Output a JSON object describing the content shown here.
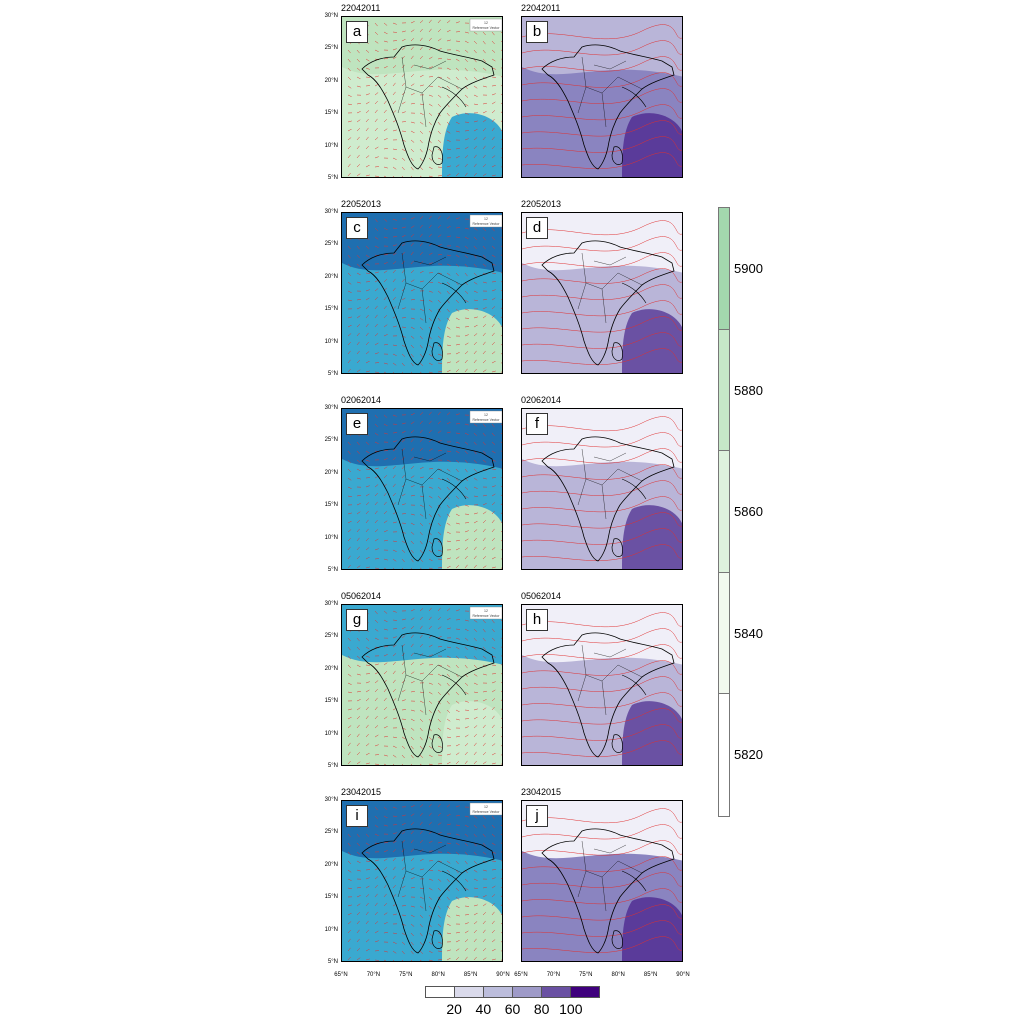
{
  "panels": [
    {
      "row": 0,
      "date": "22042011",
      "left_label": "a",
      "right_label": "b",
      "left_fill": [
        "#bfe4bf",
        "#cfecce",
        "#3aa9d0"
      ],
      "right_fill": [
        "#b9b5d8",
        "#8a84c0",
        "#5a3b9a"
      ]
    },
    {
      "row": 1,
      "date": "22052013",
      "left_label": "c",
      "right_label": "d",
      "left_fill": [
        "#1f6fb0",
        "#3aa9d0",
        "#bfe4bf"
      ],
      "right_fill": [
        "#f0eff8",
        "#b9b5d8",
        "#6a51a3"
      ]
    },
    {
      "row": 2,
      "date": "02062014",
      "left_label": "e",
      "right_label": "f",
      "left_fill": [
        "#1f6fb0",
        "#3aa9d0",
        "#bfe4bf"
      ],
      "right_fill": [
        "#f0eff8",
        "#b9b5d8",
        "#6a51a3"
      ]
    },
    {
      "row": 3,
      "date": "05062014",
      "left_label": "g",
      "right_label": "h",
      "left_fill": [
        "#3aa9d0",
        "#bfe4bf",
        "#cfecce"
      ],
      "right_fill": [
        "#f0eff8",
        "#b9b5d8",
        "#6a51a3"
      ]
    },
    {
      "row": 4,
      "date": "23042015",
      "left_label": "i",
      "right_label": "j",
      "left_fill": [
        "#1f6fb0",
        "#3aa9d0",
        "#bfe4bf"
      ],
      "right_fill": [
        "#f0eff8",
        "#8a84c0",
        "#5a3b9a"
      ]
    }
  ],
  "lat_ticks": [
    "30°N",
    "25°N",
    "20°N",
    "15°N",
    "10°N",
    "5°N"
  ],
  "lon_ticks": [
    "65°N",
    "70°N",
    "75°N",
    "80°N",
    "85°N",
    "90°N"
  ],
  "vector_legend": {
    "value": "12",
    "label": "Reference Vector"
  },
  "height_colorbar": {
    "ticks": [
      "5900",
      "5880",
      "5860",
      "5840",
      "5820"
    ],
    "colors": [
      "#a3d7ae",
      "#c6e8c8",
      "#def2dd",
      "#f2f9ef",
      "#ffffff"
    ]
  },
  "humidity_colorbar": {
    "ticks": [
      "20",
      "40",
      "60",
      "80",
      "100"
    ],
    "colors": [
      "#ffffff",
      "#dadaeb",
      "#bcbddc",
      "#9e9ac8",
      "#6a51a3",
      "#3f007d"
    ]
  },
  "colors": {
    "wind": "#e03030",
    "contour": "#e03030",
    "border": "#000000"
  }
}
